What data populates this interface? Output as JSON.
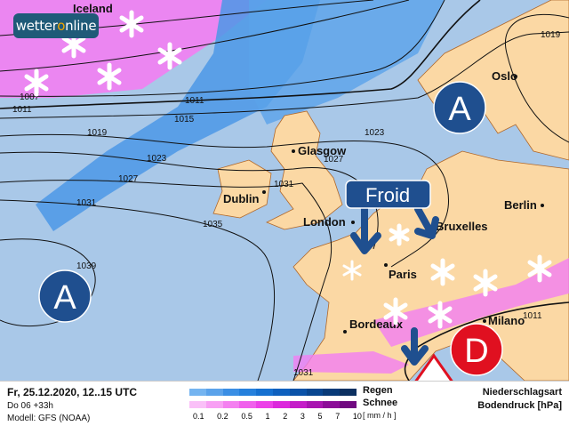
{
  "brand": {
    "logo_text_a": "wetter",
    "logo_text_b": "o",
    "logo_text_c": "nline"
  },
  "cities": [
    {
      "name": "Iceland"
    },
    {
      "name": "Oslo"
    },
    {
      "name": "Glasgow"
    },
    {
      "name": "Dublin"
    },
    {
      "name": "London"
    },
    {
      "name": "Berlin"
    },
    {
      "name": "Paris"
    },
    {
      "name": "Bruxelles"
    },
    {
      "name": "Bordeaux"
    },
    {
      "name": "Milano"
    }
  ],
  "isobars": [
    "1007",
    "1011",
    "1011",
    "1015",
    "1019",
    "1023",
    "1027",
    "1031",
    "1035",
    "1039",
    "1023",
    "1027",
    "1031",
    "1019",
    "1031",
    "1011"
  ],
  "pressure_centers": [
    {
      "label": "A",
      "type": "high"
    },
    {
      "label": "A",
      "type": "high"
    },
    {
      "label": "D",
      "type": "low"
    }
  ],
  "annotation": {
    "label": "Froid"
  },
  "colors": {
    "sea": "#a9c8e8",
    "land": "#fbd8a4",
    "rain": "#1e6fd0",
    "snow": "#f070f0",
    "high": "#1f4f8f",
    "low": "#e01020"
  },
  "legend": {
    "date": "Fr, 25.12.2020, 12..15 UTC",
    "run": "Do 06 +33h",
    "model": "Modell: GFS (NOAA)",
    "rain_label": "Regen",
    "snow_label": "Schnee",
    "unit": "[ mm / h ]",
    "scale": [
      "0.1",
      "0.2",
      "0.5",
      "1",
      "2",
      "3",
      "5",
      "7",
      "10"
    ],
    "rain_colors": [
      "#74b4f0",
      "#5aa2ea",
      "#3a8ee4",
      "#2580dc",
      "#1570d0",
      "#0e60be",
      "#0a52a8",
      "#084690",
      "#083a78",
      "#0c3060"
    ],
    "snow_colors": [
      "#fac0f8",
      "#f8a0f4",
      "#f480f0",
      "#f060ec",
      "#ec40e8",
      "#dc28dc",
      "#c41cc8",
      "#a814b0",
      "#8c0c98",
      "#700880"
    ],
    "title1": "Niederschlagsart",
    "title2": "Bodendruck [hPa]"
  }
}
